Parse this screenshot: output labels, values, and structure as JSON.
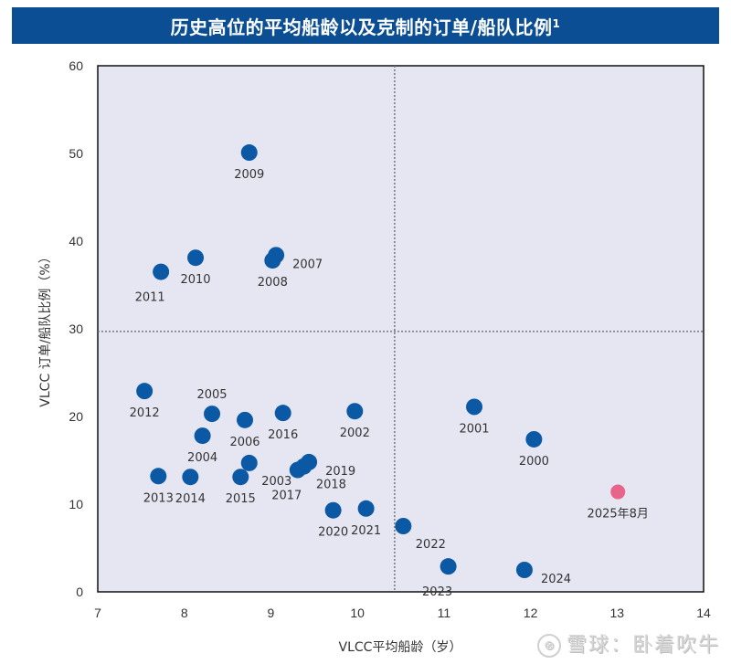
{
  "title": {
    "text": "历史高位的平均船龄以及克制的订单/船队比例",
    "footnote": "1"
  },
  "watermark": {
    "icon": "snowball-logo-icon",
    "text": "雪球：卧着吹牛"
  },
  "colors": {
    "title_bg": "#0b4e94",
    "plot_bg": "#e6e6f3",
    "point": "#0b59a4",
    "highlight": "#e8648a"
  },
  "chart_data": {
    "type": "scatter",
    "title": "历史高位的平均船龄以及克制的订单/船队比例",
    "xlabel": "VLCC平均船龄（岁）",
    "ylabel": "VLCC 订单/船队比例（%）",
    "xlim": [
      7,
      14
    ],
    "ylim": [
      0,
      60
    ],
    "xticks": [
      7,
      8,
      9,
      10,
      11,
      12,
      13,
      14
    ],
    "yticks": [
      0,
      10,
      20,
      30,
      40,
      50,
      60
    ],
    "grid": false,
    "reference_lines": {
      "x": 10.43,
      "y": 29.7,
      "style": "dotted"
    },
    "points": [
      {
        "label": "2000",
        "x": 12.04,
        "y": 17.4,
        "highlight": false,
        "label_pos": "below"
      },
      {
        "label": "2001",
        "x": 11.35,
        "y": 21.1,
        "highlight": false,
        "label_pos": "below"
      },
      {
        "label": "2002",
        "x": 9.97,
        "y": 20.6,
        "highlight": false,
        "label_pos": "below"
      },
      {
        "label": "2003",
        "x": 8.75,
        "y": 14.7,
        "highlight": false,
        "label_pos": "below-right"
      },
      {
        "label": "2004",
        "x": 8.21,
        "y": 17.8,
        "highlight": false,
        "label_pos": "below"
      },
      {
        "label": "2005",
        "x": 8.32,
        "y": 20.3,
        "highlight": false,
        "label_pos": "above"
      },
      {
        "label": "2006",
        "x": 8.7,
        "y": 19.6,
        "highlight": false,
        "label_pos": "below"
      },
      {
        "label": "2007",
        "x": 9.06,
        "y": 38.4,
        "highlight": false,
        "label_pos": "right"
      },
      {
        "label": "2008",
        "x": 9.02,
        "y": 37.8,
        "highlight": false,
        "label_pos": "below"
      },
      {
        "label": "2009",
        "x": 8.75,
        "y": 50.1,
        "highlight": false,
        "label_pos": "below"
      },
      {
        "label": "2010",
        "x": 8.13,
        "y": 38.1,
        "highlight": false,
        "label_pos": "below"
      },
      {
        "label": "2011",
        "x": 7.73,
        "y": 36.5,
        "highlight": false,
        "label_pos": "below-left"
      },
      {
        "label": "2012",
        "x": 7.54,
        "y": 22.9,
        "highlight": false,
        "label_pos": "below"
      },
      {
        "label": "2013",
        "x": 7.7,
        "y": 13.2,
        "highlight": false,
        "label_pos": "below"
      },
      {
        "label": "2014",
        "x": 8.07,
        "y": 13.1,
        "highlight": false,
        "label_pos": "below"
      },
      {
        "label": "2015",
        "x": 8.65,
        "y": 13.1,
        "highlight": false,
        "label_pos": "below"
      },
      {
        "label": "2016",
        "x": 9.14,
        "y": 20.4,
        "highlight": false,
        "label_pos": "below"
      },
      {
        "label": "2017",
        "x": 9.31,
        "y": 13.9,
        "highlight": false,
        "label_pos": "below-left"
      },
      {
        "label": "2018",
        "x": 9.38,
        "y": 14.3,
        "highlight": false,
        "label_pos": "below-right"
      },
      {
        "label": "2019",
        "x": 9.44,
        "y": 14.8,
        "highlight": false,
        "label_pos": "right"
      },
      {
        "label": "2020",
        "x": 9.72,
        "y": 9.3,
        "highlight": false,
        "label_pos": "below"
      },
      {
        "label": "2021",
        "x": 10.1,
        "y": 9.5,
        "highlight": false,
        "label_pos": "below"
      },
      {
        "label": "2022",
        "x": 10.53,
        "y": 7.5,
        "highlight": false,
        "label_pos": "below-right"
      },
      {
        "label": "2023",
        "x": 11.05,
        "y": 2.9,
        "highlight": false,
        "label_pos": "below-left"
      },
      {
        "label": "2024",
        "x": 11.93,
        "y": 2.5,
        "highlight": false,
        "label_pos": "right"
      },
      {
        "label": "2025年8月",
        "x": 13.01,
        "y": 11.4,
        "highlight": true,
        "label_pos": "below"
      }
    ]
  }
}
